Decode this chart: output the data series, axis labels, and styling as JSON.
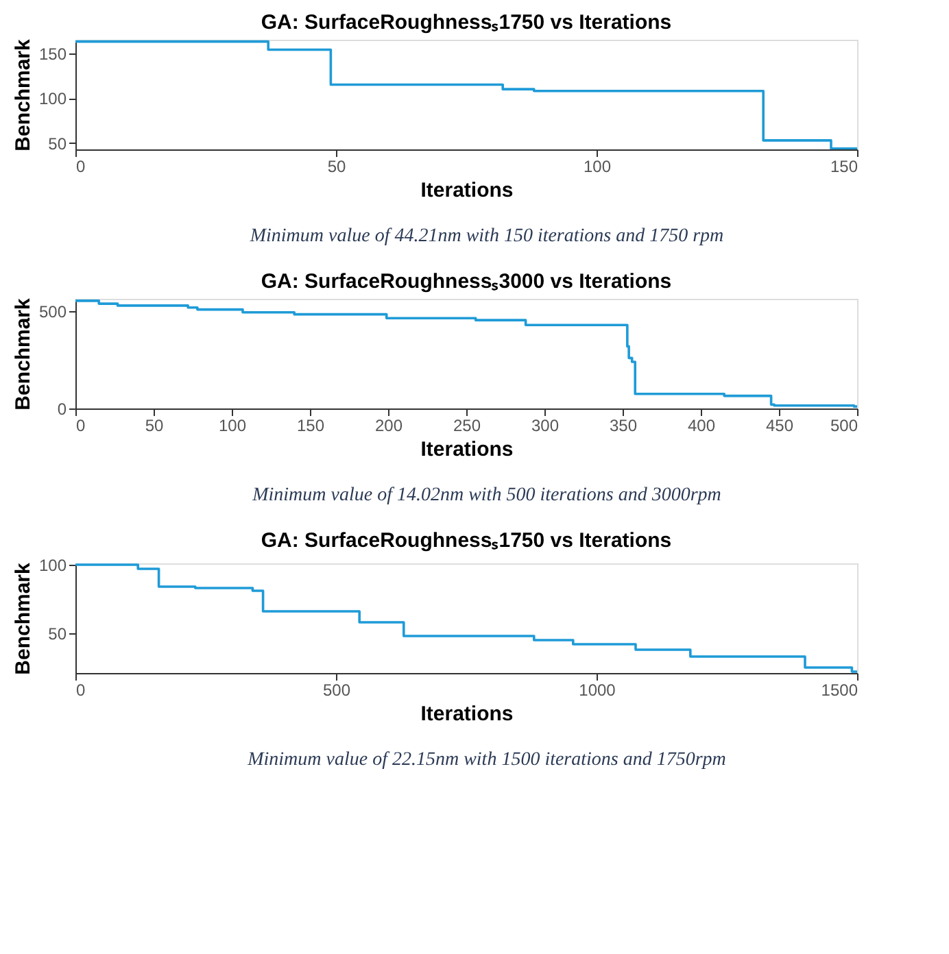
{
  "chart_data": [
    {
      "type": "step",
      "title": "GA: SurfaceRoughnessₛ1750 vs Iterations",
      "xlabel": "Iterations",
      "ylabel": "Benchmark",
      "xlim": [
        0,
        150
      ],
      "xticks": [
        0,
        50,
        100,
        150
      ],
      "ylim": [
        43,
        165
      ],
      "yticks": [
        50,
        100,
        150
      ],
      "grid": false,
      "x": [
        0,
        36,
        37,
        48,
        49,
        81,
        82,
        87,
        88,
        131,
        132,
        144,
        145,
        150
      ],
      "series": [
        {
          "color": "#1f9bd7",
          "values": [
            163,
            163,
            154,
            154,
            115,
            115,
            110,
            110,
            108,
            108,
            53,
            53,
            44,
            44
          ]
        }
      ],
      "annotations": [
        "Minimum value of 44.21nm with 150 iterations and 1750 rpm"
      ]
    },
    {
      "type": "step",
      "title": "GA: SurfaceRoughnessₛ3000 vs Iterations",
      "xlabel": "Iterations",
      "ylabel": "Benchmark",
      "xlim": [
        0,
        500
      ],
      "xticks": [
        0,
        50,
        100,
        150,
        200,
        250,
        300,
        350,
        400,
        450,
        500
      ],
      "ylim": [
        0,
        565
      ],
      "yticks": [
        0,
        500
      ],
      "grid": false,
      "x": [
        0,
        15,
        27,
        72,
        78,
        107,
        140,
        199,
        256,
        288,
        353,
        354,
        356,
        357,
        358,
        415,
        445,
        447,
        498,
        500
      ],
      "series": [
        {
          "color": "#1f9bd7",
          "values": [
            555,
            540,
            530,
            520,
            510,
            495,
            485,
            465,
            455,
            430,
            320,
            260,
            240,
            240,
            75,
            65,
            20,
            15,
            10,
            10
          ]
        }
      ],
      "annotations": [
        "Minimum value of 14.02nm with 500 iterations and 3000rpm"
      ]
    },
    {
      "type": "step",
      "title": "GA: SurfaceRoughnessₛ1750 vs Iterations",
      "xlabel": "Iterations",
      "ylabel": "Benchmark",
      "xlim": [
        0,
        1500
      ],
      "xticks": [
        0,
        500,
        1000,
        1500
      ],
      "ylim": [
        21,
        101
      ],
      "yticks": [
        50,
        100
      ],
      "grid": false,
      "x": [
        0,
        120,
        160,
        230,
        340,
        360,
        545,
        630,
        880,
        955,
        1075,
        1180,
        1400,
        1490,
        1500
      ],
      "series": [
        {
          "color": "#1f9bd7",
          "values": [
            100,
            97,
            84,
            83,
            81,
            66,
            58,
            48,
            45,
            42,
            38,
            33,
            25,
            22,
            22
          ]
        }
      ],
      "annotations": [
        "Minimum value of 22.15nm with 1500 iterations and 1750rpm"
      ]
    }
  ]
}
